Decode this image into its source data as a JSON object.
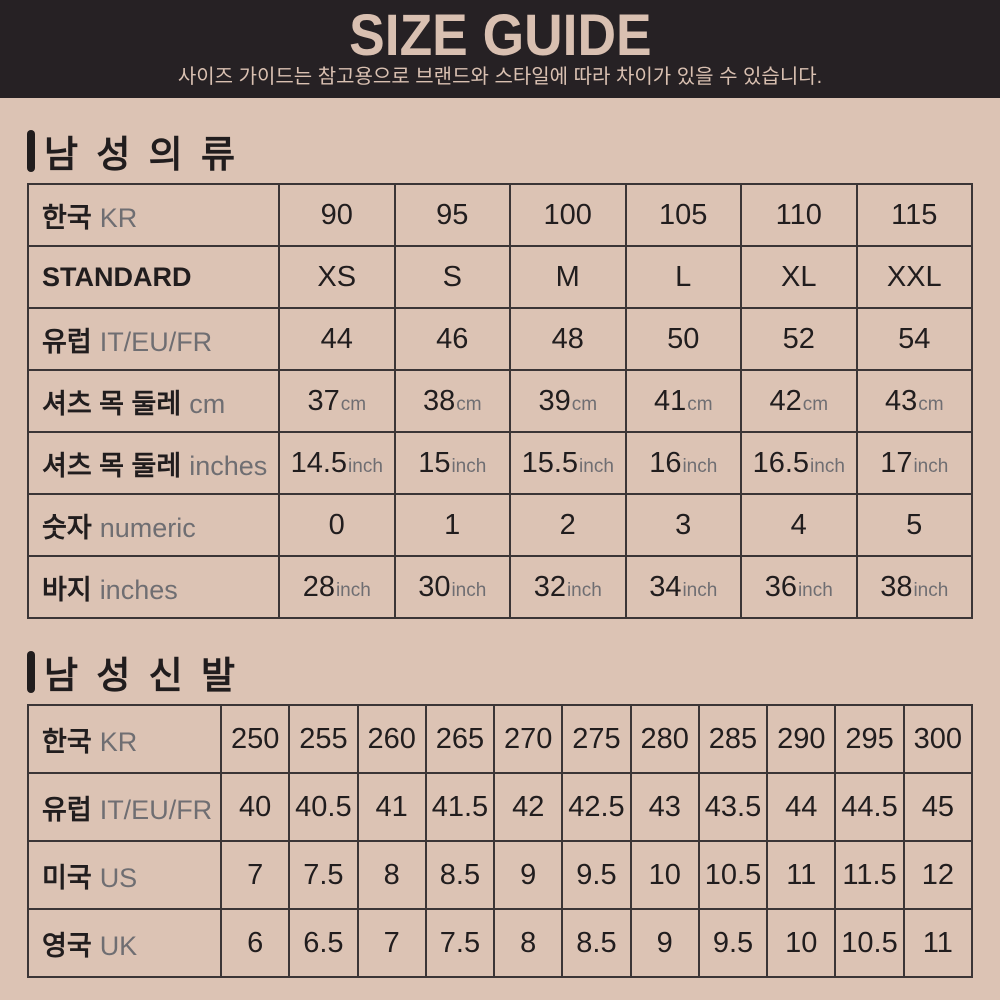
{
  "header": {
    "title": "SIZE GUIDE",
    "subtitle": "사이즈 가이드는 참고용으로 브랜드와 스타일에 따라 차이가 있을 수 있습니다."
  },
  "colors": {
    "background": "#dcc3b4",
    "band": "#262124",
    "band_text": "#d9c0b1",
    "ink": "#211d1e",
    "muted": "#6f6e72",
    "border": "#3b3536"
  },
  "sections": [
    {
      "id": "mens-clothing",
      "title": "남 성 의 류",
      "table_class": "t-clothing",
      "rows": [
        {
          "label": "한국",
          "suffix": "KR",
          "cells": [
            {
              "v": "90"
            },
            {
              "v": "95"
            },
            {
              "v": "100"
            },
            {
              "v": "105"
            },
            {
              "v": "110"
            },
            {
              "v": "115"
            }
          ]
        },
        {
          "label": "STANDARD",
          "suffix": "",
          "cells": [
            {
              "v": "XS"
            },
            {
              "v": "S"
            },
            {
              "v": "M"
            },
            {
              "v": "L"
            },
            {
              "v": "XL"
            },
            {
              "v": "XXL"
            }
          ]
        },
        {
          "label": "유럽",
          "suffix": "IT/EU/FR",
          "cells": [
            {
              "v": "44"
            },
            {
              "v": "46"
            },
            {
              "v": "48"
            },
            {
              "v": "50"
            },
            {
              "v": "52"
            },
            {
              "v": "54"
            }
          ]
        },
        {
          "label": "셔츠 목 둘레",
          "suffix": "cm",
          "cells": [
            {
              "v": "37",
              "u": "cm"
            },
            {
              "v": "38",
              "u": "cm"
            },
            {
              "v": "39",
              "u": "cm"
            },
            {
              "v": "41",
              "u": "cm"
            },
            {
              "v": "42",
              "u": "cm"
            },
            {
              "v": "43",
              "u": "cm"
            }
          ]
        },
        {
          "label": "셔츠 목 둘레",
          "suffix": "inches",
          "cells": [
            {
              "v": "14.5",
              "u": "inch"
            },
            {
              "v": "15",
              "u": "inch"
            },
            {
              "v": "15.5",
              "u": "inch"
            },
            {
              "v": "16",
              "u": "inch"
            },
            {
              "v": "16.5",
              "u": "inch"
            },
            {
              "v": "17",
              "u": "inch"
            }
          ]
        },
        {
          "label": "숫자",
          "suffix": "numeric",
          "cells": [
            {
              "v": "0"
            },
            {
              "v": "1"
            },
            {
              "v": "2"
            },
            {
              "v": "3"
            },
            {
              "v": "4"
            },
            {
              "v": "5"
            }
          ]
        },
        {
          "label": "바지",
          "suffix": "inches",
          "cells": [
            {
              "v": "28",
              "u": "inch"
            },
            {
              "v": "30",
              "u": "inch"
            },
            {
              "v": "32",
              "u": "inch"
            },
            {
              "v": "34",
              "u": "inch"
            },
            {
              "v": "36",
              "u": "inch"
            },
            {
              "v": "38",
              "u": "inch"
            }
          ]
        }
      ]
    },
    {
      "id": "mens-shoes",
      "title": "남 성 신 발",
      "table_class": "t-shoes",
      "rows": [
        {
          "label": "한국",
          "suffix": "KR",
          "cells": [
            {
              "v": "250"
            },
            {
              "v": "255"
            },
            {
              "v": "260"
            },
            {
              "v": "265"
            },
            {
              "v": "270"
            },
            {
              "v": "275"
            },
            {
              "v": "280"
            },
            {
              "v": "285"
            },
            {
              "v": "290"
            },
            {
              "v": "295"
            },
            {
              "v": "300"
            }
          ]
        },
        {
          "label": "유럽",
          "suffix": "IT/EU/FR",
          "cells": [
            {
              "v": "40"
            },
            {
              "v": "40.5"
            },
            {
              "v": "41"
            },
            {
              "v": "41.5"
            },
            {
              "v": "42"
            },
            {
              "v": "42.5"
            },
            {
              "v": "43"
            },
            {
              "v": "43.5"
            },
            {
              "v": "44"
            },
            {
              "v": "44.5"
            },
            {
              "v": "45"
            }
          ]
        },
        {
          "label": "미국",
          "suffix": "US",
          "cells": [
            {
              "v": "7"
            },
            {
              "v": "7.5"
            },
            {
              "v": "8"
            },
            {
              "v": "8.5"
            },
            {
              "v": "9"
            },
            {
              "v": "9.5"
            },
            {
              "v": "10"
            },
            {
              "v": "10.5"
            },
            {
              "v": "11"
            },
            {
              "v": "11.5"
            },
            {
              "v": "12"
            }
          ]
        },
        {
          "label": "영국",
          "suffix": "UK",
          "cells": [
            {
              "v": "6"
            },
            {
              "v": "6.5"
            },
            {
              "v": "7"
            },
            {
              "v": "7.5"
            },
            {
              "v": "8"
            },
            {
              "v": "8.5"
            },
            {
              "v": "9"
            },
            {
              "v": "9.5"
            },
            {
              "v": "10"
            },
            {
              "v": "10.5"
            },
            {
              "v": "11"
            }
          ]
        }
      ]
    }
  ]
}
